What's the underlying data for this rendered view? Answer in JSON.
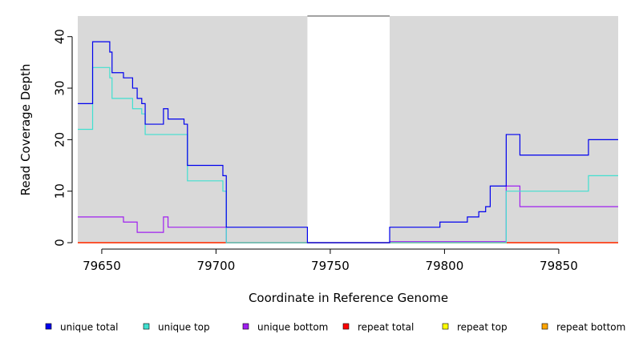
{
  "chart_data": {
    "type": "line",
    "step": true,
    "title": "",
    "xlabel": "Coordinate in Reference Genome",
    "ylabel": "Read Coverage Depth",
    "xlim": [
      79639.5,
      79876
    ],
    "ylim": [
      0,
      44
    ],
    "xticks": [
      79650,
      79700,
      79750,
      79800,
      79850
    ],
    "yticks": [
      0,
      10,
      20,
      30,
      40
    ],
    "grid": false,
    "background": "#d9d9d9",
    "unshaded_regions": [
      [
        79740,
        79776
      ]
    ],
    "legend_position": "bottom",
    "series": [
      {
        "name": "unique total",
        "color": "#0000ee",
        "points": [
          [
            79639.5,
            27
          ],
          [
            79646,
            27
          ],
          [
            79646,
            39
          ],
          [
            79653.5,
            39
          ],
          [
            79653.5,
            37
          ],
          [
            79654.5,
            37
          ],
          [
            79654.5,
            33
          ],
          [
            79659.5,
            33
          ],
          [
            79659.5,
            32
          ],
          [
            79663.5,
            32
          ],
          [
            79663.5,
            30
          ],
          [
            79665.5,
            30
          ],
          [
            79665.5,
            28
          ],
          [
            79667.5,
            28
          ],
          [
            79667.5,
            27
          ],
          [
            79669,
            27
          ],
          [
            79669,
            23
          ],
          [
            79677,
            23
          ],
          [
            79677,
            26
          ],
          [
            79679,
            26
          ],
          [
            79679,
            24
          ],
          [
            79686,
            24
          ],
          [
            79686,
            23
          ],
          [
            79687.5,
            23
          ],
          [
            79687.5,
            15
          ],
          [
            79703,
            15
          ],
          [
            79703,
            13
          ],
          [
            79704.5,
            13
          ],
          [
            79704.5,
            3
          ],
          [
            79740,
            3
          ],
          [
            79740,
            0
          ],
          [
            79776,
            0
          ],
          [
            79776,
            3
          ],
          [
            79798,
            3
          ],
          [
            79798,
            4
          ],
          [
            79810,
            4
          ],
          [
            79810,
            5
          ],
          [
            79815,
            5
          ],
          [
            79815,
            6
          ],
          [
            79818,
            6
          ],
          [
            79818,
            7
          ],
          [
            79820,
            7
          ],
          [
            79820,
            11
          ],
          [
            79827,
            11
          ],
          [
            79827,
            21
          ],
          [
            79833,
            21
          ],
          [
            79833,
            17
          ],
          [
            79863,
            17
          ],
          [
            79863,
            20
          ],
          [
            79876,
            20
          ]
        ]
      },
      {
        "name": "unique top",
        "color": "#40e0d0",
        "points": [
          [
            79639.5,
            22
          ],
          [
            79646,
            22
          ],
          [
            79646,
            34
          ],
          [
            79653.5,
            34
          ],
          [
            79653.5,
            32
          ],
          [
            79654.5,
            32
          ],
          [
            79654.5,
            28
          ],
          [
            79663.5,
            28
          ],
          [
            79663.5,
            26
          ],
          [
            79667.5,
            26
          ],
          [
            79667.5,
            25
          ],
          [
            79669,
            25
          ],
          [
            79669,
            21
          ],
          [
            79687.5,
            21
          ],
          [
            79687.5,
            12
          ],
          [
            79703,
            12
          ],
          [
            79703,
            10
          ],
          [
            79704.5,
            10
          ],
          [
            79704.5,
            0
          ],
          [
            79827,
            0
          ],
          [
            79827,
            10
          ],
          [
            79863,
            10
          ],
          [
            79863,
            13
          ],
          [
            79876,
            13
          ]
        ]
      },
      {
        "name": "unique bottom",
        "color": "#a020f0",
        "points": [
          [
            79639.5,
            5
          ],
          [
            79659.5,
            5
          ],
          [
            79659.5,
            4
          ],
          [
            79665.5,
            4
          ],
          [
            79665.5,
            2
          ],
          [
            79677,
            2
          ],
          [
            79677,
            5
          ],
          [
            79679,
            5
          ],
          [
            79679,
            3
          ],
          [
            79704.5,
            3
          ],
          [
            79704.5,
            0
          ],
          [
            79776,
            0
          ],
          [
            79776,
            0.2
          ],
          [
            79827,
            0.2
          ],
          [
            79827,
            11
          ],
          [
            79833,
            11
          ],
          [
            79833,
            7
          ],
          [
            79876,
            7
          ]
        ]
      },
      {
        "name": "repeat total",
        "color": "#ff0000",
        "points": [
          [
            79639.5,
            0
          ],
          [
            79876,
            0
          ]
        ]
      },
      {
        "name": "repeat top",
        "color": "#ffff00",
        "points": [
          [
            79639.5,
            0
          ],
          [
            79876,
            0
          ]
        ]
      },
      {
        "name": "repeat bottom",
        "color": "#ffa500",
        "points": [
          [
            79639.5,
            0
          ],
          [
            79876,
            0
          ]
        ]
      }
    ]
  }
}
